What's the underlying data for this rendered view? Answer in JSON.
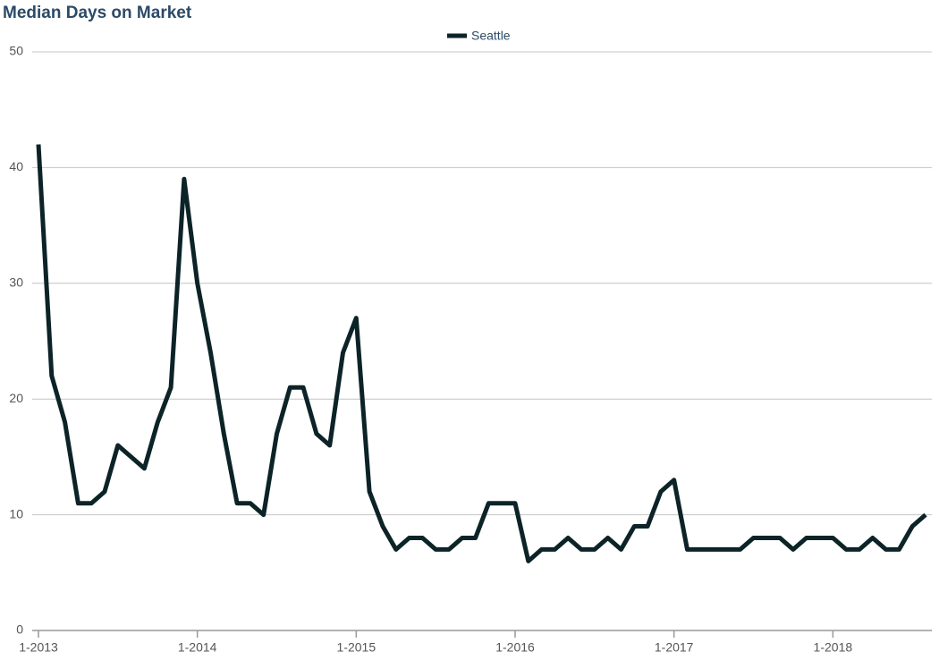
{
  "chart_data": {
    "type": "line",
    "title": "Median Days on Market",
    "x": [
      "2013-01",
      "2013-02",
      "2013-03",
      "2013-04",
      "2013-05",
      "2013-06",
      "2013-07",
      "2013-08",
      "2013-09",
      "2013-10",
      "2013-11",
      "2013-12",
      "2014-01",
      "2014-02",
      "2014-03",
      "2014-04",
      "2014-05",
      "2014-06",
      "2014-07",
      "2014-08",
      "2014-09",
      "2014-10",
      "2014-11",
      "2014-12",
      "2015-01",
      "2015-02",
      "2015-03",
      "2015-04",
      "2015-05",
      "2015-06",
      "2015-07",
      "2015-08",
      "2015-09",
      "2015-10",
      "2015-11",
      "2015-12",
      "2016-01",
      "2016-02",
      "2016-03",
      "2016-04",
      "2016-05",
      "2016-06",
      "2016-07",
      "2016-08",
      "2016-09",
      "2016-10",
      "2016-11",
      "2016-12",
      "2017-01",
      "2017-02",
      "2017-03",
      "2017-04",
      "2017-05",
      "2017-06",
      "2017-07",
      "2017-08",
      "2017-09",
      "2017-10",
      "2017-11",
      "2017-12",
      "2018-01",
      "2018-02",
      "2018-03",
      "2018-04",
      "2018-05",
      "2018-06",
      "2018-07",
      "2018-08"
    ],
    "series": [
      {
        "name": "Seattle",
        "color": "#0c2327",
        "values": [
          42,
          22,
          18,
          11,
          11,
          12,
          16,
          15,
          14,
          18,
          21,
          39,
          30,
          24,
          17,
          11,
          11,
          10,
          17,
          21,
          21,
          17,
          16,
          24,
          27,
          12,
          9,
          7,
          8,
          8,
          7,
          7,
          8,
          8,
          11,
          11,
          11,
          6,
          7,
          7,
          8,
          7,
          7,
          8,
          7,
          9,
          9,
          12,
          13,
          7,
          7,
          7,
          7,
          7,
          8,
          8,
          8,
          7,
          8,
          8,
          8,
          7,
          7,
          8,
          7,
          7,
          9,
          10
        ]
      }
    ],
    "ylim": [
      0,
      50
    ],
    "yticks": [
      0,
      10,
      20,
      30,
      40,
      50
    ],
    "xlim": [
      "2013-01",
      "2018-08"
    ],
    "xticks": [
      {
        "value": "2013-01",
        "label": "1-2013"
      },
      {
        "value": "2014-01",
        "label": "1-2014"
      },
      {
        "value": "2015-01",
        "label": "1-2015"
      },
      {
        "value": "2016-01",
        "label": "1-2016"
      },
      {
        "value": "2017-01",
        "label": "1-2017"
      },
      {
        "value": "2018-01",
        "label": "1-2018"
      }
    ],
    "grid": true,
    "legend": "top"
  }
}
